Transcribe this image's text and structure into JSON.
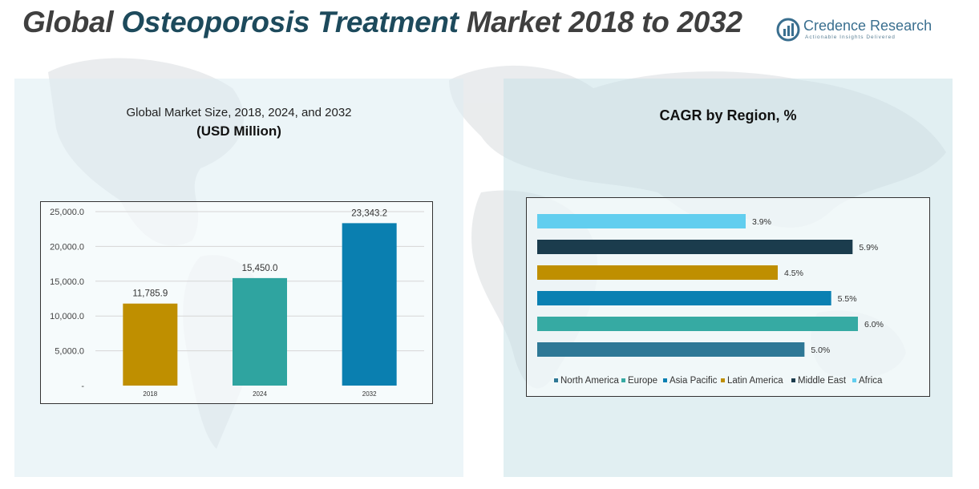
{
  "header": {
    "title_part1": "Global",
    "title_part2": "Osteoporosis Treatment",
    "title_part3": "Market 2018 to 2032"
  },
  "logo": {
    "name": "Credence Research",
    "tagline": "Actionable Insights Delivered",
    "color": "#3a6f8f"
  },
  "left_panel": {
    "title": "Global Market Size, 2018, 2024, and 2032",
    "subtitle": "(USD Million)"
  },
  "right_panel": {
    "title": "CAGR by Region, %"
  },
  "chart_data": [
    {
      "type": "bar",
      "title": "Global Market Size, 2018, 2024, and 2032",
      "subtitle": "(USD Million)",
      "categories": [
        "2018",
        "2024",
        "2032"
      ],
      "values": [
        11785.9,
        15450.0,
        23343.2
      ],
      "value_labels": [
        "11,785.9",
        "15,450.0",
        "23,343.2"
      ],
      "colors": [
        "#bf8f00",
        "#2fa4a0",
        "#0a7fb0"
      ],
      "ylim": [
        0,
        25000
      ],
      "yticks": [
        0,
        5000,
        10000,
        15000,
        20000,
        25000
      ],
      "ytick_labels": [
        "-",
        "5,000.0",
        "10,000.0",
        "15,000.0",
        "20,000.0",
        "25,000.0"
      ],
      "grid": true
    },
    {
      "type": "bar",
      "orientation": "horizontal",
      "title": "CAGR by Region, %",
      "series": [
        {
          "name": "North America",
          "value": 5.0,
          "label": "5.0%",
          "color": "#2e7896"
        },
        {
          "name": "Europe",
          "value": 6.0,
          "label": "6.0%",
          "color": "#36aaa3"
        },
        {
          "name": "Asia Pacific",
          "value": 5.5,
          "label": "5.5%",
          "color": "#0a80b2"
        },
        {
          "name": "Latin America",
          "value": 4.5,
          "label": "4.5%",
          "color": "#bf8f00"
        },
        {
          "name": "Middle East",
          "value": 5.9,
          "label": "5.9%",
          "color": "#1b3c4d"
        },
        {
          "name": "Africa",
          "value": 3.9,
          "label": "3.9%",
          "color": "#62ceef"
        }
      ],
      "bar_order_top_to_bottom": [
        "Africa",
        "Middle East",
        "Latin America",
        "Asia Pacific",
        "Europe",
        "North America"
      ],
      "xlim": [
        0,
        6.3
      ],
      "legend_placement": "bottom",
      "grid": false
    }
  ]
}
